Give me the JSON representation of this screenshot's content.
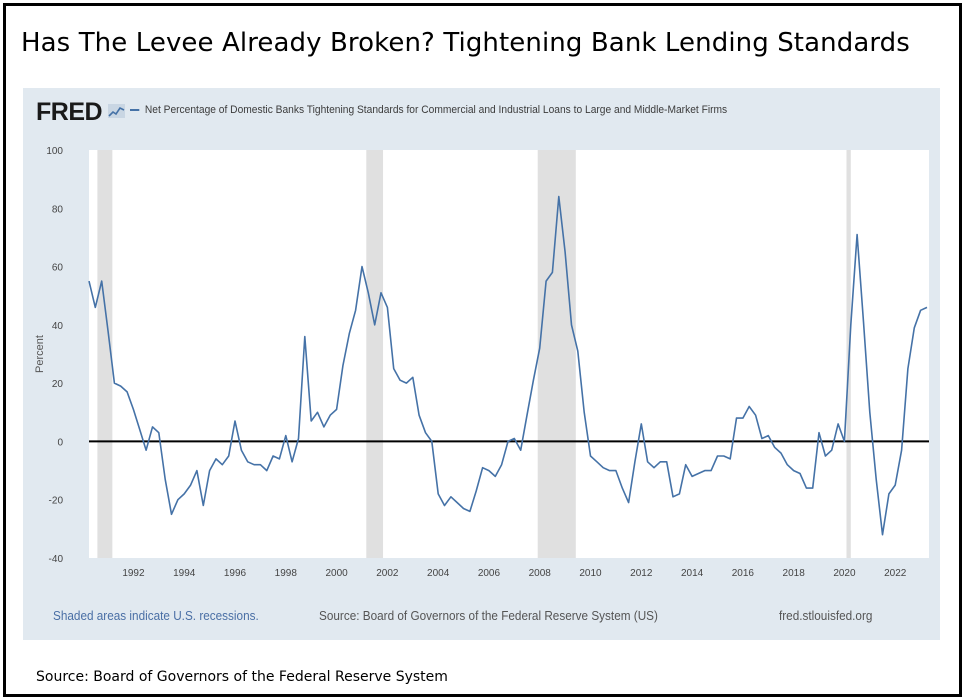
{
  "headline": "Has The Levee Already Broken?  Tightening Bank Lending Standards",
  "fred": {
    "logo": "FRED",
    "logo_mark_icon": "chart-line-icon",
    "legend_label": "Net Percentage of Domestic Banks Tightening Standards for Commercial and Industrial Loans to Large and Middle-Market Firms",
    "recession_note": "Shaded areas indicate U.S. recessions.",
    "source_note": "Source: Board of Governors of the Federal Reserve System (US)",
    "url": "fred.stlouisfed.org"
  },
  "bottom_source": "Source: Board of Governors of the Federal Reserve System",
  "colors": {
    "panel_background": "#e1e9f0",
    "plot_background": "#ffffff",
    "series_line": "#4572a7",
    "recession_shade": "#e0e0e0",
    "zero_line": "#000000",
    "recession_note_text": "#4a6fa5"
  },
  "chart_data": {
    "type": "line",
    "title": "",
    "xlabel": "",
    "ylabel": "Percent",
    "xlim": [
      1990.25,
      2023.33
    ],
    "ylim": [
      -40,
      100
    ],
    "yticks": [
      -40,
      -20,
      0,
      20,
      40,
      60,
      80,
      100
    ],
    "xticks": [
      1992,
      1994,
      1996,
      1998,
      2000,
      2002,
      2004,
      2006,
      2008,
      2010,
      2012,
      2014,
      2016,
      2018,
      2020,
      2022
    ],
    "grid": false,
    "legend_placement": "top-left",
    "zero_line": true,
    "recessions": [
      [
        1990.58,
        1991.17
      ],
      [
        2001.17,
        2001.83
      ],
      [
        2007.92,
        2009.42
      ],
      [
        2020.08,
        2020.25
      ]
    ],
    "series": [
      {
        "name": "Net Percentage of Domestic Banks Tightening Standards for Commercial and Industrial Loans to Large and Middle-Market Firms",
        "x": [
          1990.25,
          1990.5,
          1990.75,
          1991.0,
          1991.25,
          1991.5,
          1991.75,
          1992.0,
          1992.25,
          1992.5,
          1992.75,
          1993.0,
          1993.25,
          1993.5,
          1993.75,
          1994.0,
          1994.25,
          1994.5,
          1994.75,
          1995.0,
          1995.25,
          1995.5,
          1995.75,
          1996.0,
          1996.25,
          1996.5,
          1996.75,
          1997.0,
          1997.25,
          1997.5,
          1997.75,
          1998.0,
          1998.25,
          1998.5,
          1998.75,
          1999.0,
          1999.25,
          1999.5,
          1999.75,
          2000.0,
          2000.25,
          2000.5,
          2000.75,
          2001.0,
          2001.25,
          2001.5,
          2001.75,
          2002.0,
          2002.25,
          2002.5,
          2002.75,
          2003.0,
          2003.25,
          2003.5,
          2003.75,
          2004.0,
          2004.25,
          2004.5,
          2004.75,
          2005.0,
          2005.25,
          2005.5,
          2005.75,
          2006.0,
          2006.25,
          2006.5,
          2006.75,
          2007.0,
          2007.25,
          2007.5,
          2007.75,
          2008.0,
          2008.25,
          2008.5,
          2008.75,
          2009.0,
          2009.25,
          2009.5,
          2009.75,
          2010.0,
          2010.25,
          2010.5,
          2010.75,
          2011.0,
          2011.25,
          2011.5,
          2011.75,
          2012.0,
          2012.25,
          2012.5,
          2012.75,
          2013.0,
          2013.25,
          2013.5,
          2013.75,
          2014.0,
          2014.25,
          2014.5,
          2014.75,
          2015.0,
          2015.25,
          2015.5,
          2015.75,
          2016.0,
          2016.25,
          2016.5,
          2016.75,
          2017.0,
          2017.25,
          2017.5,
          2017.75,
          2018.0,
          2018.25,
          2018.5,
          2018.75,
          2019.0,
          2019.25,
          2019.5,
          2019.75,
          2020.0,
          2020.25,
          2020.5,
          2020.75,
          2021.0,
          2021.25,
          2021.5,
          2021.75,
          2022.0,
          2022.25,
          2022.5,
          2022.75,
          2023.0,
          2023.25
        ],
        "values": [
          55,
          46,
          55,
          38,
          20,
          19,
          17,
          11,
          4,
          -3,
          5,
          3,
          -13,
          -25,
          -20,
          -18,
          -15,
          -10,
          -22,
          -10,
          -6,
          -8,
          -5,
          7,
          -3,
          -7,
          -8,
          -8,
          -10,
          -5,
          -6,
          2,
          -7,
          1,
          36,
          7,
          10,
          5,
          9,
          11,
          26,
          37,
          45,
          60,
          51,
          40,
          51,
          46,
          25,
          21,
          20,
          22,
          9,
          3,
          0,
          -18,
          -22,
          -19,
          -21,
          -23,
          -24,
          -17,
          -9,
          -10,
          -12,
          -8,
          0,
          1,
          -3,
          9,
          21,
          32,
          55,
          58,
          84,
          65,
          40,
          31,
          10,
          -5,
          -7,
          -9,
          -10,
          -10,
          -16,
          -21,
          -7,
          6,
          -7,
          -9,
          -7,
          -7,
          -19,
          -18,
          -8,
          -12,
          -11,
          -10,
          -10,
          -5,
          -5,
          -6,
          8,
          8,
          12,
          9,
          1,
          2,
          -2,
          -4,
          -8,
          -10,
          -11,
          -16,
          -16,
          3,
          -5,
          -3,
          6,
          0,
          40,
          71,
          41,
          10,
          -13,
          -32,
          -18,
          -15,
          -3,
          25,
          39,
          45,
          46
        ]
      }
    ]
  }
}
